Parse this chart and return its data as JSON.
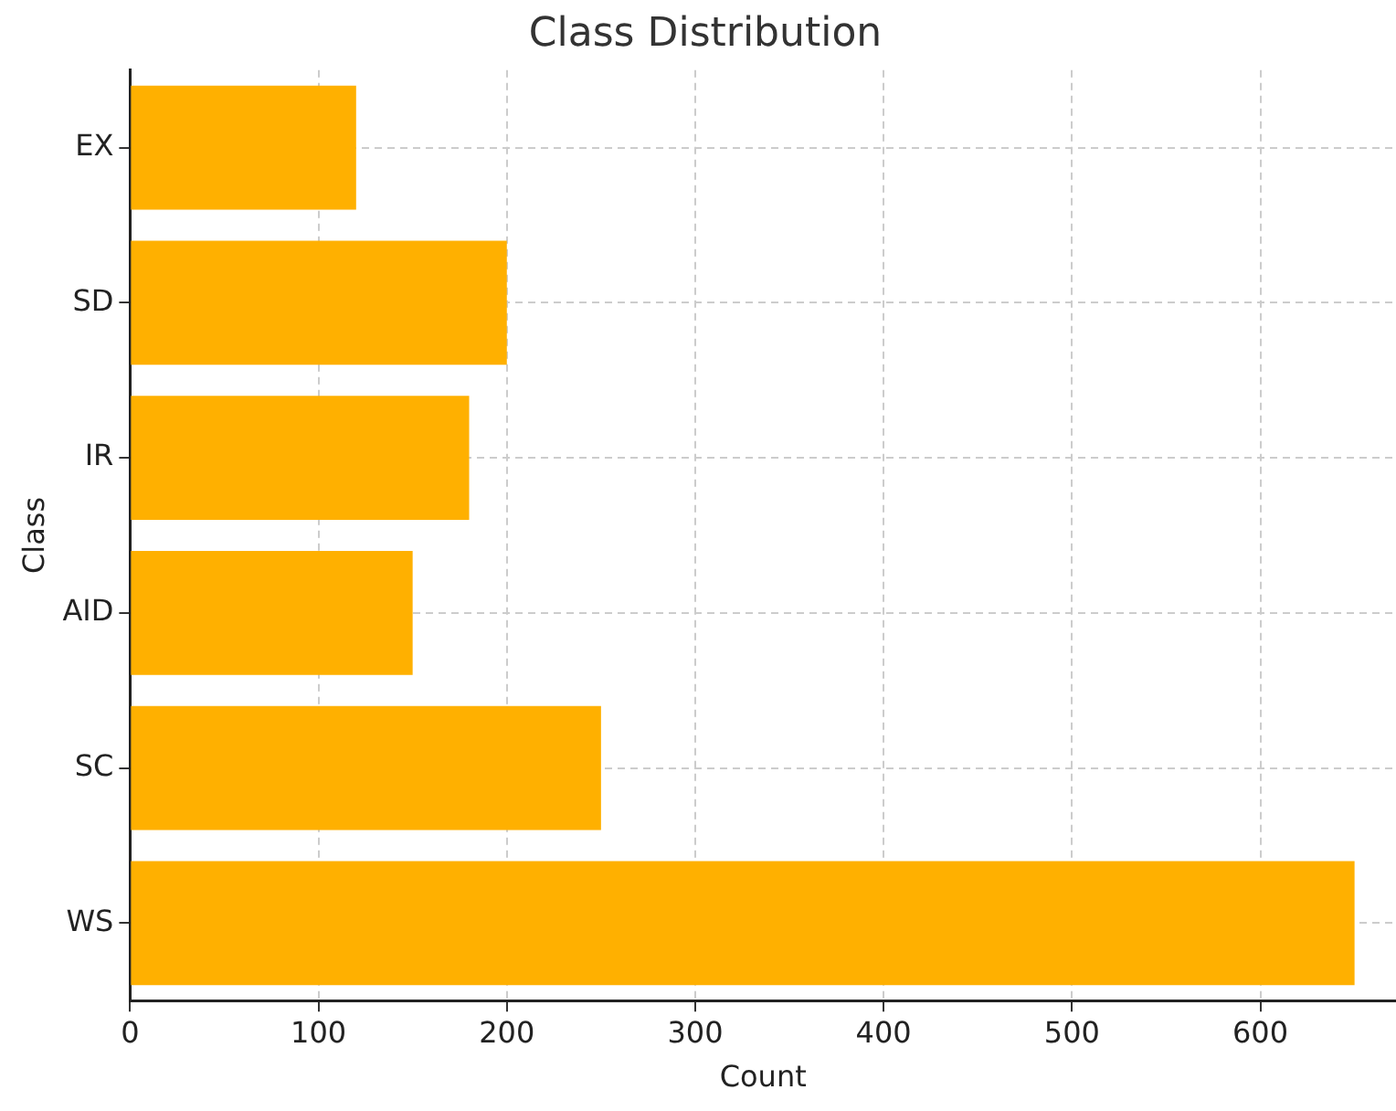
{
  "chart_data": {
    "type": "bar",
    "orientation": "horizontal",
    "title": "Class Distribution",
    "xlabel": "Count",
    "ylabel": "Class",
    "categories": [
      "EX",
      "SD",
      "IR",
      "AID",
      "SC",
      "WS"
    ],
    "values": [
      120,
      200,
      180,
      150,
      250,
      650
    ],
    "color": "#ffb000",
    "xlim": [
      0,
      672
    ],
    "xticks": [
      0,
      100,
      200,
      300,
      400,
      500,
      600
    ],
    "grid": true
  }
}
